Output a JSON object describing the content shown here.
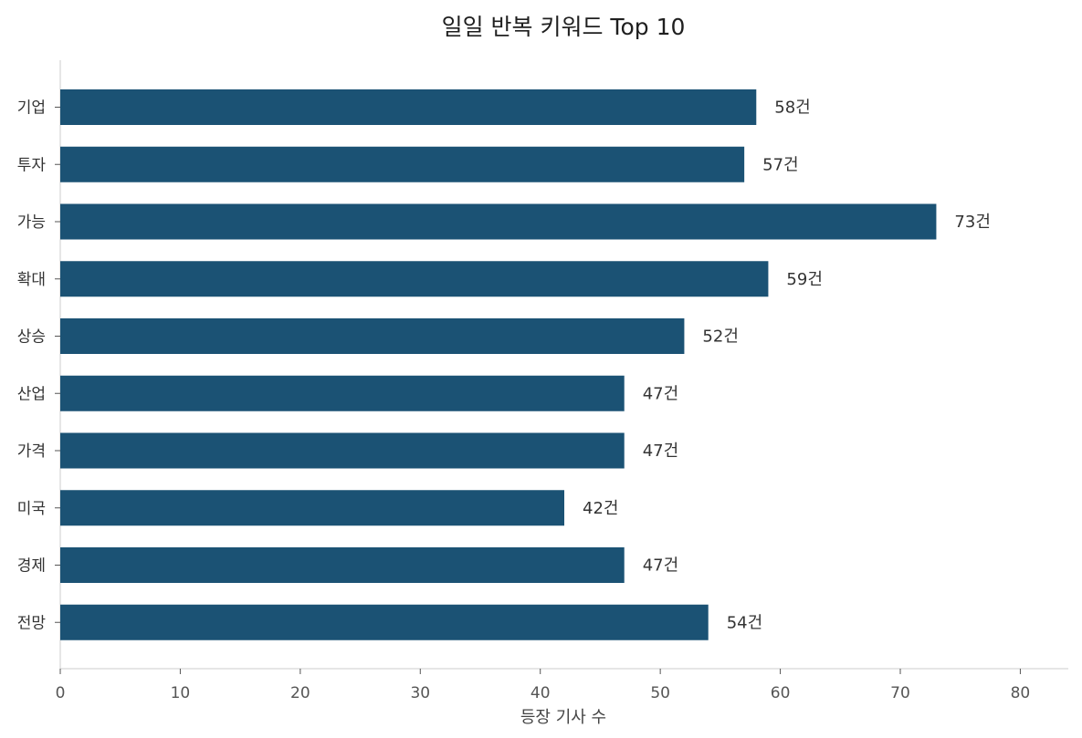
{
  "chart_data": {
    "type": "bar",
    "orientation": "horizontal",
    "title": "일일 반복 키워드 Top 10",
    "xlabel": "등장 기사 수",
    "ylabel": "",
    "categories": [
      "기업",
      "투자",
      "가능",
      "확대",
      "상승",
      "산업",
      "가격",
      "미국",
      "경제",
      "전망"
    ],
    "values": [
      58,
      57,
      73,
      59,
      52,
      47,
      47,
      42,
      47,
      54
    ],
    "value_labels": [
      "58건",
      "57건",
      "73건",
      "59건",
      "52건",
      "47건",
      "47건",
      "42건",
      "47건",
      "54건"
    ],
    "xlim": [
      0,
      84
    ],
    "xticks": [
      "0",
      "10",
      "20",
      "30",
      "40",
      "50",
      "60",
      "70",
      "80"
    ],
    "grid": false,
    "bar_color": "#1b5274",
    "axis_color": "#dddddd"
  }
}
